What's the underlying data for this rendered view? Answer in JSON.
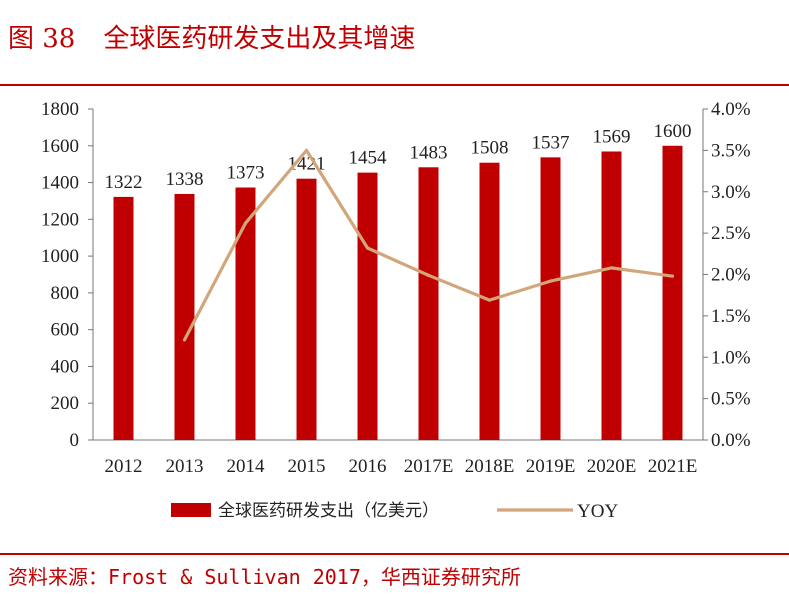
{
  "figure": {
    "number": "图 38",
    "title": "全球医药研发支出及其增速"
  },
  "source": "资料来源：Frost & Sullivan 2017，华西证券研究所",
  "chart_data": {
    "type": "bar+line",
    "categories": [
      "2012",
      "2013",
      "2014",
      "2015",
      "2016",
      "2017E",
      "2018E",
      "2019E",
      "2020E",
      "2021E"
    ],
    "series": [
      {
        "name": "全球医药研发支出（亿美元）",
        "type": "bar",
        "axis": "left",
        "color": "#c00000",
        "values": [
          1322,
          1338,
          1373,
          1421,
          1454,
          1483,
          1508,
          1537,
          1569,
          1600
        ],
        "labels": [
          "1322",
          "1338",
          "1373",
          "1421",
          "1454",
          "1483",
          "1508",
          "1537",
          "1569",
          "1600"
        ]
      },
      {
        "name": "YOY",
        "type": "line",
        "axis": "right",
        "color": "#d2a67b",
        "values": [
          null,
          1.21,
          2.62,
          3.5,
          2.32,
          1.99,
          1.69,
          1.92,
          2.08,
          1.98
        ]
      }
    ],
    "y_left": {
      "min": 0,
      "max": 1800,
      "ticks": [
        "0",
        "200",
        "400",
        "600",
        "800",
        "1000",
        "1200",
        "1400",
        "1600",
        "1800"
      ]
    },
    "y_right": {
      "min": 0,
      "max": 4.0,
      "unit": "%",
      "ticks": [
        "0.0%",
        "0.5%",
        "1.0%",
        "1.5%",
        "2.0%",
        "2.5%",
        "3.0%",
        "3.5%",
        "4.0%"
      ]
    },
    "grid": false,
    "legend_position": "bottom"
  }
}
